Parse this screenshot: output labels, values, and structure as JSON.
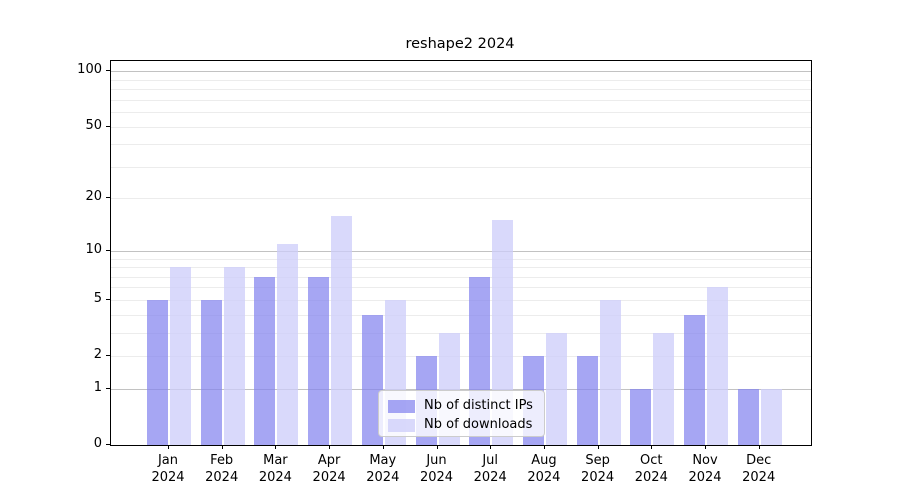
{
  "window": {
    "title": "reshape2 2024"
  },
  "chart_data": {
    "type": "bar",
    "title": "reshape2 2024",
    "categories": [
      "Jan",
      "Feb",
      "Mar",
      "Apr",
      "May",
      "Jun",
      "Jul",
      "Aug",
      "Sep",
      "Oct",
      "Nov",
      "Dec"
    ],
    "category_year": "2024",
    "series": [
      {
        "name": "Nb of distinct IPs",
        "color": "rgba(132,132,239,0.72)",
        "values": [
          5,
          5,
          7,
          7,
          4,
          2,
          7,
          2,
          2,
          1,
          4,
          1
        ]
      },
      {
        "name": "Nb of downloads",
        "color": "rgba(205,205,250,0.76)",
        "values": [
          8,
          8,
          11,
          16,
          5,
          3,
          15,
          3,
          5,
          3,
          6,
          1
        ]
      }
    ],
    "yscale": "log1p",
    "ylim": [
      0,
      110
    ],
    "ytick_values": [
      0,
      1,
      2,
      5,
      10,
      20,
      50,
      100
    ],
    "ytick_labels": [
      "0",
      "1",
      "2",
      "5",
      "10",
      "20",
      "50",
      "100"
    ],
    "grid_major": [
      1,
      10,
      100
    ],
    "grid_minor": [
      2,
      3,
      4,
      5,
      6,
      7,
      8,
      9,
      20,
      30,
      40,
      50,
      60,
      70,
      80,
      90
    ],
    "grid": "on",
    "legend_position": "inside-bottom-center",
    "colors": {
      "grid_major": "#c2c2c2",
      "grid_minor": "#ececec",
      "axis": "#000000",
      "background": "#ffffff"
    }
  }
}
